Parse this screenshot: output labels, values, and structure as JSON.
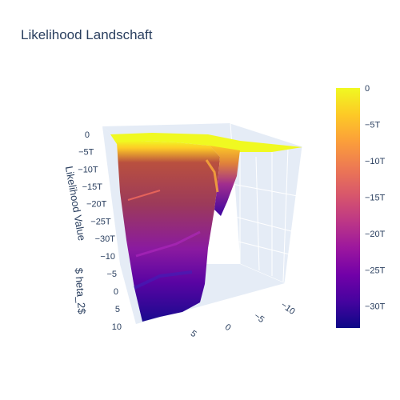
{
  "chart_data": {
    "type": "surface",
    "title": "Likelihood Landschaft",
    "axes": {
      "z_title": "Likelihood Value",
      "y_title": "$ heta_2$",
      "x_title": "",
      "z_ticks": [
        "0",
        "−5T",
        "−10T",
        "−15T",
        "−20T",
        "−25T",
        "−30T"
      ],
      "y_ticks": [
        "−10",
        "−5",
        "0",
        "5",
        "10"
      ],
      "x_ticks": [
        "5",
        "0",
        "−5",
        "−10"
      ],
      "zlim": [
        -33,
        0
      ]
    },
    "colorbar": {
      "ticks": [
        "0",
        "−5T",
        "−10T",
        "−15T",
        "−20T",
        "−25T",
        "−30T"
      ],
      "values": [
        0,
        -5,
        -10,
        -15,
        -20,
        -25,
        -30
      ],
      "range": [
        -33,
        0
      ],
      "colors": [
        "#0d0887",
        "#46039f",
        "#7201a8",
        "#9c179e",
        "#bd3786",
        "#d8576b",
        "#ed7953",
        "#fb9f3a",
        "#fdca26",
        "#f0f921"
      ]
    },
    "surface_summary": {
      "plateau_value": 0,
      "min_value": -33,
      "unit": "T"
    }
  }
}
